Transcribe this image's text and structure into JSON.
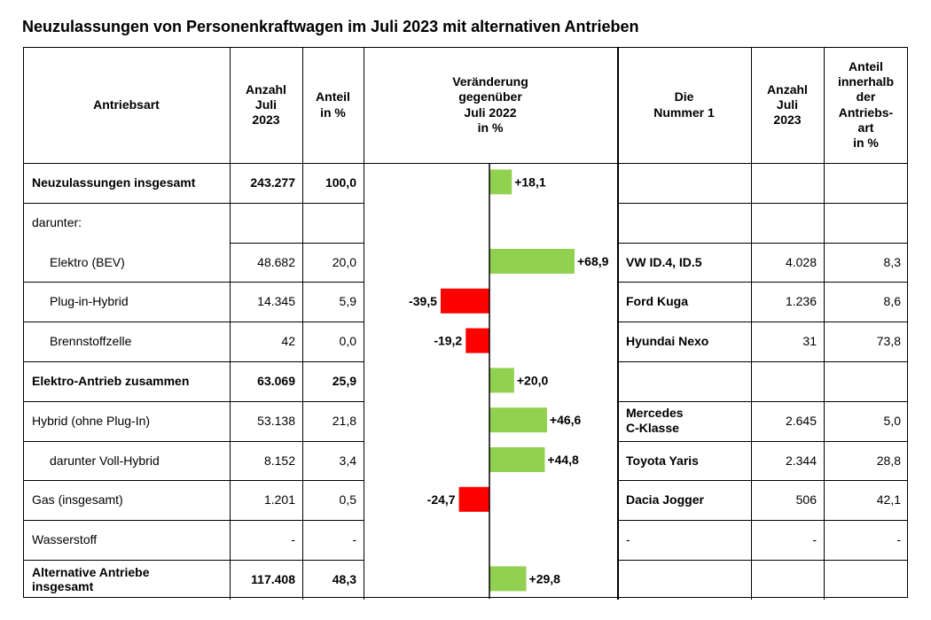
{
  "title": "Neuzulassungen von Personenkraftwagen im Juli 2023 mit alternativen Antrieben",
  "headers": {
    "antriebsart": "Antriebsart",
    "anzahl": "Anzahl\nJuli\n2023",
    "anteil": "Anteil\nin %",
    "veraenderung": "Veränderung\ngegenüber\nJuli 2022\nin %",
    "nummer1": "Die\nNummer 1",
    "anzahl_modell": "Anzahl\nJuli\n2023",
    "anteil_antriebsart": "Anteil\ninnerhalb\nder\nAntriebs-\nart\nin %"
  },
  "rows": [
    {
      "label": "Neuzulassungen insgesamt",
      "anzahl": "243.277",
      "anteil": "100,0",
      "model": "",
      "model_count": "",
      "model_share": "",
      "bold": true,
      "indent": false
    },
    {
      "label": "darunter:",
      "anzahl": "",
      "anteil": "",
      "model": "",
      "model_count": "",
      "model_share": "",
      "bold": false,
      "indent": false
    },
    {
      "label": "Elektro (BEV)",
      "anzahl": "48.682",
      "anteil": "20,0",
      "model": "VW ID.4, ID.5",
      "model_count": "4.028",
      "model_share": "8,3",
      "bold": false,
      "indent": true
    },
    {
      "label": "Plug-in-Hybrid",
      "anzahl": "14.345",
      "anteil": "5,9",
      "model": "Ford Kuga",
      "model_count": "1.236",
      "model_share": "8,6",
      "bold": false,
      "indent": true
    },
    {
      "label": "Brennstoffzelle",
      "anzahl": "42",
      "anteil": "0,0",
      "model": "Hyundai Nexo",
      "model_count": "31",
      "model_share": "73,8",
      "bold": false,
      "indent": true
    },
    {
      "label": "Elektro-Antrieb zusammen",
      "anzahl": "63.069",
      "anteil": "25,9",
      "model": "",
      "model_count": "",
      "model_share": "",
      "bold": true,
      "indent": false
    },
    {
      "label": "Hybrid (ohne Plug-In)",
      "anzahl": "53.138",
      "anteil": "21,8",
      "model": "Mercedes\nC-Klasse",
      "model_count": "2.645",
      "model_share": "5,0",
      "bold": false,
      "indent": false
    },
    {
      "label": "darunter Voll-Hybrid",
      "anzahl": "8.152",
      "anteil": "3,4",
      "model": "Toyota Yaris",
      "model_count": "2.344",
      "model_share": "28,8",
      "bold": false,
      "indent": true
    },
    {
      "label": "Gas (insgesamt)",
      "anzahl": "1.201",
      "anteil": "0,5",
      "model": "Dacia Jogger",
      "model_count": "506",
      "model_share": "42,1",
      "bold": false,
      "indent": false
    },
    {
      "label": "Wasserstoff",
      "anzahl": "-",
      "anteil": "-",
      "model": "-",
      "model_count": "-",
      "model_share": "-",
      "bold": false,
      "indent": false
    },
    {
      "label": "Alternative Antriebe\ninsgesamt",
      "anzahl": "117.408",
      "anteil": "48,3",
      "model": "",
      "model_count": "",
      "model_share": "",
      "bold": true,
      "indent": false
    }
  ],
  "colors": {
    "positive": "#92d050",
    "negative": "#ff0000",
    "line": "#000000"
  },
  "chart_data": {
    "type": "bar",
    "orientation": "horizontal",
    "categories": [
      "Neuzulassungen insgesamt",
      "darunter:",
      "Elektro (BEV)",
      "Plug-in-Hybrid",
      "Brennstoffzelle",
      "Elektro-Antrieb zusammen",
      "Hybrid (ohne Plug-In)",
      "darunter Voll-Hybrid",
      "Gas (insgesamt)",
      "Wasserstoff",
      "Alternative Antriebe insgesamt"
    ],
    "values": [
      18.1,
      null,
      68.9,
      -39.5,
      -19.2,
      20.0,
      46.6,
      44.8,
      -24.7,
      null,
      29.8
    ],
    "labels": [
      "+18,1",
      "",
      "+68,9",
      "-39,5",
      "-19,2",
      "+20,0",
      "+46,6",
      "+44,8",
      "-24,7",
      "",
      "+29,8"
    ],
    "title": "Veränderung gegenüber Juli 2022 in %",
    "xlabel": "",
    "ylabel": "",
    "grid": false
  }
}
